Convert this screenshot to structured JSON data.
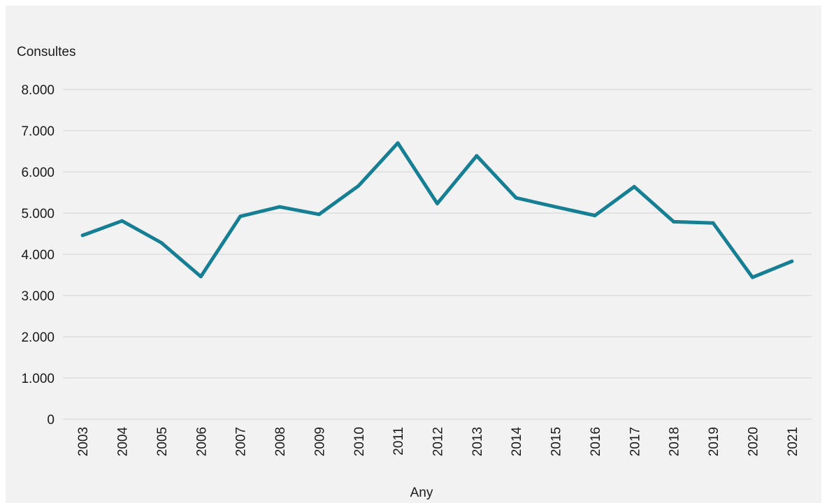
{
  "chart_data": {
    "type": "line",
    "title": "",
    "xlabel": "Any",
    "ylabel": "Consultes",
    "ylim": [
      0,
      8000
    ],
    "yticks": [
      0,
      1000,
      2000,
      3000,
      4000,
      5000,
      6000,
      7000,
      8000
    ],
    "ytick_labels": [
      "0",
      "1.000",
      "2.000",
      "3.000",
      "4.000",
      "5.000",
      "6.000",
      "7.000",
      "8.000"
    ],
    "categories": [
      "2003",
      "2004",
      "2005",
      "2006",
      "2007",
      "2008",
      "2009",
      "2010",
      "2011",
      "2012",
      "2013",
      "2014",
      "2015",
      "2016",
      "2017",
      "2018",
      "2019",
      "2020",
      "2021"
    ],
    "series": [
      {
        "values": [
          4460,
          4810,
          4280,
          3460,
          4920,
          5150,
          4970,
          5660,
          6700,
          5230,
          6390,
          5370,
          5150,
          4940,
          5640,
          4790,
          4760,
          3440,
          3830
        ],
        "color": "#167f94"
      }
    ],
    "grid": true,
    "gridline_color": "#d9d9d9",
    "legend": "none"
  }
}
